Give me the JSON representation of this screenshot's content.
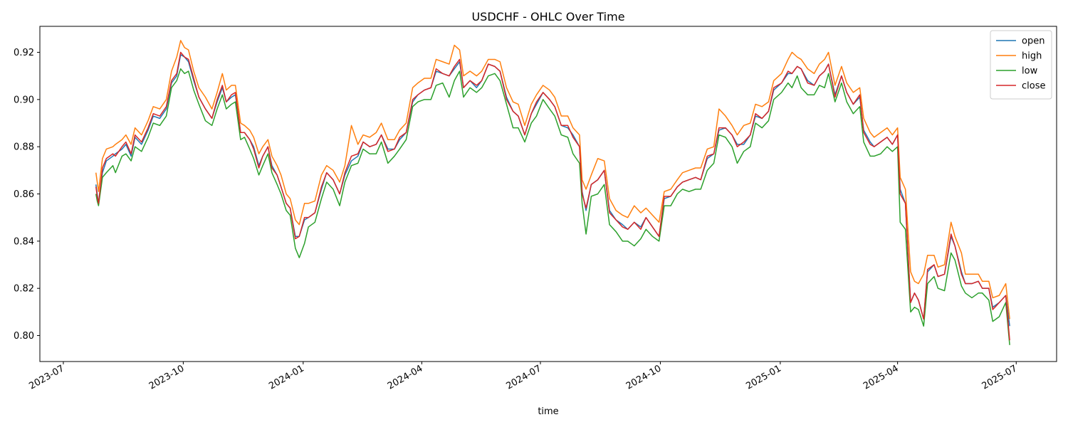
{
  "chart_data": {
    "type": "line",
    "title": "USDCHF - OHLC Over Time",
    "xlabel": "time",
    "ylabel": "",
    "xlim": [
      "2023-06-13",
      "2025-08-01"
    ],
    "ylim": [
      0.789,
      0.931
    ],
    "x_ticks": [
      "2023-07",
      "2023-10",
      "2024-01",
      "2024-04",
      "2024-07",
      "2024-10",
      "2025-01",
      "2025-04",
      "2025-07"
    ],
    "y_ticks": [
      "0.80",
      "0.82",
      "0.84",
      "0.86",
      "0.88",
      "0.90",
      "0.92"
    ],
    "grid": false,
    "legend_position": "top-right",
    "x": [
      "2023-07-26",
      "2023-07-27",
      "2023-07-28",
      "2023-07-31",
      "2023-08-03",
      "2023-08-08",
      "2023-08-10",
      "2023-08-15",
      "2023-08-18",
      "2023-08-22",
      "2023-08-25",
      "2023-08-30",
      "2023-09-04",
      "2023-09-08",
      "2023-09-13",
      "2023-09-18",
      "2023-09-22",
      "2023-09-26",
      "2023-09-29",
      "2023-10-02",
      "2023-10-05",
      "2023-10-09",
      "2023-10-13",
      "2023-10-18",
      "2023-10-23",
      "2023-10-27",
      "2023-10-31",
      "2023-11-03",
      "2023-11-07",
      "2023-11-10",
      "2023-11-14",
      "2023-11-17",
      "2023-11-21",
      "2023-11-24",
      "2023-11-28",
      "2023-12-01",
      "2023-12-05",
      "2023-12-08",
      "2023-12-12",
      "2023-12-15",
      "2023-12-19",
      "2023-12-22",
      "2023-12-26",
      "2023-12-29",
      "2024-01-02",
      "2024-01-05",
      "2024-01-10",
      "2024-01-15",
      "2024-01-19",
      "2024-01-24",
      "2024-01-29",
      "2024-02-02",
      "2024-02-07",
      "2024-02-12",
      "2024-02-16",
      "2024-02-21",
      "2024-02-26",
      "2024-03-01",
      "2024-03-06",
      "2024-03-11",
      "2024-03-15",
      "2024-03-20",
      "2024-03-25",
      "2024-03-29",
      "2024-04-03",
      "2024-04-08",
      "2024-04-12",
      "2024-04-17",
      "2024-04-22",
      "2024-04-26",
      "2024-04-30",
      "2024-05-03",
      "2024-05-08",
      "2024-05-13",
      "2024-05-17",
      "2024-05-22",
      "2024-05-27",
      "2024-05-31",
      "2024-06-05",
      "2024-06-10",
      "2024-06-14",
      "2024-06-19",
      "2024-06-24",
      "2024-06-28",
      "2024-07-03",
      "2024-07-08",
      "2024-07-12",
      "2024-07-17",
      "2024-07-22",
      "2024-07-26",
      "2024-07-31",
      "2024-08-02",
      "2024-08-05",
      "2024-08-09",
      "2024-08-14",
      "2024-08-19",
      "2024-08-23",
      "2024-08-28",
      "2024-09-02",
      "2024-09-06",
      "2024-09-11",
      "2024-09-16",
      "2024-09-20",
      "2024-09-25",
      "2024-09-30",
      "2024-10-04",
      "2024-10-09",
      "2024-10-14",
      "2024-10-18",
      "2024-10-23",
      "2024-10-28",
      "2024-11-01",
      "2024-11-06",
      "2024-11-11",
      "2024-11-15",
      "2024-11-20",
      "2024-11-25",
      "2024-11-29",
      "2024-12-04",
      "2024-12-09",
      "2024-12-13",
      "2024-12-18",
      "2024-12-23",
      "2024-12-27",
      "2025-01-02",
      "2025-01-07",
      "2025-01-10",
      "2025-01-14",
      "2025-01-17",
      "2025-01-22",
      "2025-01-27",
      "2025-01-31",
      "2025-02-04",
      "2025-02-07",
      "2025-02-12",
      "2025-02-17",
      "2025-02-21",
      "2025-02-26",
      "2025-03-03",
      "2025-03-06",
      "2025-03-11",
      "2025-03-14",
      "2025-03-19",
      "2025-03-24",
      "2025-03-28",
      "2025-04-01",
      "2025-04-03",
      "2025-04-07",
      "2025-04-11",
      "2025-04-14",
      "2025-04-17",
      "2025-04-21",
      "2025-04-24",
      "2025-04-29",
      "2025-05-02",
      "2025-05-07",
      "2025-05-12",
      "2025-05-15",
      "2025-05-20",
      "2025-05-23",
      "2025-05-28",
      "2025-06-02",
      "2025-06-05",
      "2025-06-10",
      "2025-06-13",
      "2025-06-18",
      "2025-06-23",
      "2025-06-26"
    ],
    "series": [
      {
        "name": "open",
        "color": "#1f77b4",
        "values": [
          0.864,
          0.86,
          0.856,
          0.869,
          0.874,
          0.876,
          0.877,
          0.879,
          0.881,
          0.876,
          0.884,
          0.881,
          0.887,
          0.893,
          0.892,
          0.896,
          0.907,
          0.91,
          0.919,
          0.918,
          0.916,
          0.908,
          0.901,
          0.896,
          0.892,
          0.899,
          0.905,
          0.899,
          0.901,
          0.902,
          0.886,
          0.886,
          0.883,
          0.88,
          0.872,
          0.876,
          0.88,
          0.872,
          0.868,
          0.863,
          0.856,
          0.854,
          0.842,
          0.842,
          0.849,
          0.85,
          0.852,
          0.862,
          0.869,
          0.866,
          0.86,
          0.868,
          0.874,
          0.876,
          0.882,
          0.88,
          0.881,
          0.885,
          0.879,
          0.879,
          0.883,
          0.886,
          0.899,
          0.902,
          0.904,
          0.905,
          0.912,
          0.911,
          0.91,
          0.913,
          0.916,
          0.905,
          0.908,
          0.905,
          0.908,
          0.915,
          0.914,
          0.912,
          0.901,
          0.895,
          0.893,
          0.885,
          0.894,
          0.898,
          0.903,
          0.9,
          0.897,
          0.889,
          0.888,
          0.885,
          0.88,
          0.861,
          0.853,
          0.864,
          0.866,
          0.87,
          0.853,
          0.849,
          0.847,
          0.845,
          0.848,
          0.846,
          0.85,
          0.846,
          0.842,
          0.858,
          0.859,
          0.863,
          0.865,
          0.866,
          0.867,
          0.866,
          0.875,
          0.877,
          0.887,
          0.888,
          0.885,
          0.881,
          0.881,
          0.885,
          0.893,
          0.892,
          0.895,
          0.904,
          0.907,
          0.911,
          0.911,
          0.914,
          0.913,
          0.908,
          0.906,
          0.91,
          0.912,
          0.915,
          0.902,
          0.91,
          0.903,
          0.898,
          0.901,
          0.887,
          0.882,
          0.88,
          0.882,
          0.884,
          0.881,
          0.885,
          0.862,
          0.856,
          0.814,
          0.818,
          0.815,
          0.807,
          0.827,
          0.83,
          0.825,
          0.826,
          0.842,
          0.838,
          0.827,
          0.822,
          0.822,
          0.823,
          0.82,
          0.82,
          0.812,
          0.814,
          0.817,
          0.804
        ]
      },
      {
        "name": "high",
        "color": "#ff7f0e",
        "values": [
          0.869,
          0.865,
          0.861,
          0.875,
          0.879,
          0.88,
          0.881,
          0.883,
          0.885,
          0.881,
          0.888,
          0.885,
          0.891,
          0.897,
          0.896,
          0.9,
          0.912,
          0.918,
          0.925,
          0.922,
          0.921,
          0.912,
          0.905,
          0.901,
          0.896,
          0.903,
          0.911,
          0.904,
          0.906,
          0.906,
          0.89,
          0.889,
          0.887,
          0.884,
          0.877,
          0.88,
          0.883,
          0.876,
          0.872,
          0.868,
          0.86,
          0.858,
          0.849,
          0.847,
          0.856,
          0.856,
          0.857,
          0.868,
          0.872,
          0.87,
          0.865,
          0.872,
          0.889,
          0.881,
          0.885,
          0.884,
          0.886,
          0.89,
          0.883,
          0.883,
          0.887,
          0.89,
          0.905,
          0.907,
          0.909,
          0.909,
          0.917,
          0.916,
          0.915,
          0.923,
          0.921,
          0.91,
          0.912,
          0.91,
          0.912,
          0.917,
          0.917,
          0.916,
          0.905,
          0.899,
          0.898,
          0.889,
          0.898,
          0.902,
          0.906,
          0.904,
          0.901,
          0.893,
          0.893,
          0.888,
          0.885,
          0.866,
          0.862,
          0.868,
          0.875,
          0.874,
          0.858,
          0.853,
          0.851,
          0.85,
          0.855,
          0.852,
          0.854,
          0.851,
          0.848,
          0.861,
          0.862,
          0.866,
          0.869,
          0.87,
          0.871,
          0.871,
          0.879,
          0.88,
          0.896,
          0.893,
          0.889,
          0.885,
          0.889,
          0.89,
          0.898,
          0.897,
          0.899,
          0.908,
          0.911,
          0.917,
          0.92,
          0.918,
          0.917,
          0.913,
          0.911,
          0.915,
          0.917,
          0.92,
          0.906,
          0.914,
          0.907,
          0.903,
          0.905,
          0.892,
          0.886,
          0.884,
          0.886,
          0.888,
          0.885,
          0.888,
          0.867,
          0.862,
          0.827,
          0.823,
          0.822,
          0.826,
          0.834,
          0.834,
          0.829,
          0.83,
          0.848,
          0.842,
          0.835,
          0.826,
          0.826,
          0.826,
          0.823,
          0.823,
          0.816,
          0.817,
          0.822,
          0.807
        ]
      },
      {
        "name": "low",
        "color": "#2ca02c",
        "values": [
          0.86,
          0.857,
          0.855,
          0.867,
          0.869,
          0.872,
          0.869,
          0.876,
          0.877,
          0.874,
          0.88,
          0.878,
          0.884,
          0.89,
          0.889,
          0.893,
          0.905,
          0.908,
          0.913,
          0.911,
          0.912,
          0.904,
          0.898,
          0.891,
          0.889,
          0.896,
          0.902,
          0.896,
          0.898,
          0.899,
          0.883,
          0.884,
          0.879,
          0.875,
          0.868,
          0.872,
          0.877,
          0.869,
          0.864,
          0.86,
          0.853,
          0.851,
          0.837,
          0.833,
          0.839,
          0.846,
          0.848,
          0.858,
          0.865,
          0.862,
          0.855,
          0.865,
          0.872,
          0.873,
          0.879,
          0.877,
          0.877,
          0.882,
          0.873,
          0.876,
          0.879,
          0.883,
          0.897,
          0.899,
          0.9,
          0.9,
          0.906,
          0.907,
          0.901,
          0.908,
          0.912,
          0.901,
          0.905,
          0.903,
          0.905,
          0.91,
          0.911,
          0.908,
          0.898,
          0.888,
          0.888,
          0.882,
          0.89,
          0.893,
          0.9,
          0.896,
          0.893,
          0.885,
          0.884,
          0.877,
          0.873,
          0.856,
          0.843,
          0.859,
          0.86,
          0.864,
          0.847,
          0.844,
          0.84,
          0.84,
          0.838,
          0.841,
          0.845,
          0.842,
          0.84,
          0.855,
          0.855,
          0.86,
          0.862,
          0.861,
          0.862,
          0.862,
          0.87,
          0.873,
          0.885,
          0.884,
          0.88,
          0.873,
          0.878,
          0.88,
          0.89,
          0.888,
          0.891,
          0.9,
          0.903,
          0.907,
          0.905,
          0.91,
          0.905,
          0.902,
          0.902,
          0.906,
          0.905,
          0.911,
          0.899,
          0.907,
          0.899,
          0.894,
          0.897,
          0.882,
          0.876,
          0.876,
          0.877,
          0.88,
          0.878,
          0.88,
          0.848,
          0.845,
          0.81,
          0.812,
          0.811,
          0.804,
          0.822,
          0.825,
          0.82,
          0.819,
          0.835,
          0.832,
          0.821,
          0.818,
          0.816,
          0.818,
          0.818,
          0.815,
          0.806,
          0.808,
          0.814,
          0.796
        ]
      },
      {
        "name": "close",
        "color": "#d62728",
        "values": [
          0.863,
          0.859,
          0.856,
          0.871,
          0.875,
          0.877,
          0.876,
          0.88,
          0.882,
          0.877,
          0.885,
          0.882,
          0.888,
          0.894,
          0.893,
          0.897,
          0.908,
          0.911,
          0.92,
          0.918,
          0.917,
          0.909,
          0.901,
          0.896,
          0.892,
          0.9,
          0.906,
          0.899,
          0.902,
          0.903,
          0.886,
          0.886,
          0.883,
          0.879,
          0.871,
          0.876,
          0.88,
          0.871,
          0.868,
          0.863,
          0.856,
          0.854,
          0.841,
          0.842,
          0.85,
          0.85,
          0.852,
          0.863,
          0.869,
          0.866,
          0.86,
          0.869,
          0.876,
          0.877,
          0.882,
          0.88,
          0.881,
          0.885,
          0.878,
          0.879,
          0.884,
          0.886,
          0.9,
          0.902,
          0.904,
          0.905,
          0.913,
          0.911,
          0.91,
          0.914,
          0.917,
          0.905,
          0.908,
          0.906,
          0.908,
          0.915,
          0.914,
          0.912,
          0.9,
          0.895,
          0.893,
          0.885,
          0.894,
          0.899,
          0.903,
          0.9,
          0.897,
          0.889,
          0.889,
          0.884,
          0.88,
          0.86,
          0.854,
          0.864,
          0.866,
          0.87,
          0.852,
          0.849,
          0.846,
          0.845,
          0.848,
          0.845,
          0.85,
          0.846,
          0.842,
          0.859,
          0.859,
          0.863,
          0.865,
          0.866,
          0.867,
          0.866,
          0.876,
          0.877,
          0.888,
          0.888,
          0.885,
          0.88,
          0.882,
          0.885,
          0.894,
          0.892,
          0.895,
          0.905,
          0.907,
          0.912,
          0.911,
          0.914,
          0.913,
          0.907,
          0.906,
          0.91,
          0.912,
          0.915,
          0.901,
          0.91,
          0.903,
          0.898,
          0.902,
          0.886,
          0.881,
          0.88,
          0.882,
          0.884,
          0.881,
          0.885,
          0.86,
          0.856,
          0.814,
          0.818,
          0.815,
          0.807,
          0.828,
          0.83,
          0.825,
          0.826,
          0.843,
          0.838,
          0.826,
          0.822,
          0.822,
          0.823,
          0.82,
          0.82,
          0.811,
          0.814,
          0.817,
          0.798
        ]
      }
    ]
  }
}
